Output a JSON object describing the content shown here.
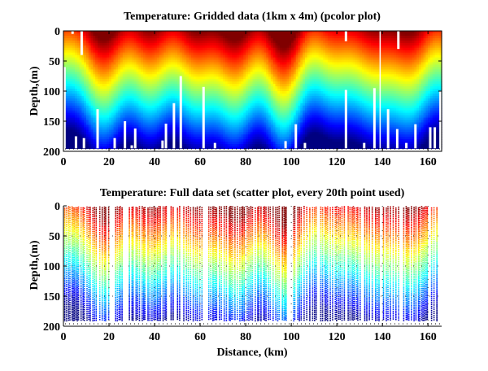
{
  "chart_data": [
    {
      "type": "heatmap",
      "title": "Temperature: Gridded data (1km x 4m) (pcolor plot)",
      "xlabel": "",
      "ylabel": "Depth,(m)",
      "xlim": [
        0,
        166
      ],
      "ylim": [
        200,
        0
      ],
      "y_reversed": true,
      "xticks": [
        "0",
        "20",
        "40",
        "60",
        "80",
        "100",
        "120",
        "140",
        "160"
      ],
      "yticks": [
        "0",
        "50",
        "100",
        "150",
        "200"
      ],
      "grid": false,
      "colormap": "jet",
      "depth_layers_m": [
        {
          "depth": 0,
          "color": "#a50000"
        },
        {
          "depth": 30,
          "color": "#e01000"
        },
        {
          "depth": 55,
          "color": "#ff6000"
        },
        {
          "depth": 75,
          "color": "#ffe000"
        },
        {
          "depth": 95,
          "color": "#a0f060"
        },
        {
          "depth": 115,
          "color": "#30e0e0"
        },
        {
          "depth": 140,
          "color": "#0080f0"
        },
        {
          "depth": 165,
          "color": "#0020d0"
        },
        {
          "depth": 195,
          "color": "#0000a0"
        }
      ],
      "gaps": [
        {
          "x": 4,
          "top": 0,
          "bottom": 5
        },
        {
          "x": 8,
          "top": 0,
          "bottom": 40
        },
        {
          "x": 5.5,
          "top": 175,
          "bottom": 195
        },
        {
          "x": 9,
          "top": 178,
          "bottom": 195
        },
        {
          "x": 15,
          "top": 130,
          "bottom": 195
        },
        {
          "x": 22.5,
          "top": 178,
          "bottom": 195
        },
        {
          "x": 27,
          "top": 150,
          "bottom": 195
        },
        {
          "x": 30,
          "top": 190,
          "bottom": 195
        },
        {
          "x": 31.5,
          "top": 162,
          "bottom": 195
        },
        {
          "x": 43.5,
          "top": 182,
          "bottom": 195
        },
        {
          "x": 45,
          "top": 154,
          "bottom": 195
        },
        {
          "x": 48.5,
          "top": 120,
          "bottom": 195
        },
        {
          "x": 51.5,
          "top": 75,
          "bottom": 195
        },
        {
          "x": 61.5,
          "top": 93,
          "bottom": 195
        },
        {
          "x": 66.5,
          "top": 186,
          "bottom": 195
        },
        {
          "x": 97.5,
          "top": 183,
          "bottom": 195
        },
        {
          "x": 102,
          "top": 155,
          "bottom": 195
        },
        {
          "x": 106,
          "top": 186,
          "bottom": 195
        },
        {
          "x": 124,
          "top": 0,
          "bottom": 17
        },
        {
          "x": 124,
          "top": 98,
          "bottom": 195
        },
        {
          "x": 132,
          "top": 186,
          "bottom": 195
        },
        {
          "x": 136.5,
          "top": 95,
          "bottom": 195
        },
        {
          "x": 139,
          "top": 0,
          "bottom": 195
        },
        {
          "x": 147,
          "top": 0,
          "bottom": 30
        },
        {
          "x": 142.5,
          "top": 130,
          "bottom": 195
        },
        {
          "x": 146.5,
          "top": 163,
          "bottom": 195
        },
        {
          "x": 150.5,
          "top": 186,
          "bottom": 195
        },
        {
          "x": 154.5,
          "top": 155,
          "bottom": 195
        },
        {
          "x": 161,
          "top": 160,
          "bottom": 195
        },
        {
          "x": 163,
          "top": 160,
          "bottom": 195
        },
        {
          "x": 165.5,
          "top": 100,
          "bottom": 200
        }
      ]
    },
    {
      "type": "scatter",
      "title": "Temperature: Full data set (scatter plot, every 20th point used)",
      "xlabel": "Distance, (km)",
      "ylabel": "Depth,(m)",
      "xlim": [
        0,
        166
      ],
      "ylim": [
        200,
        0
      ],
      "y_reversed": true,
      "xticks": [
        "0",
        "20",
        "40",
        "60",
        "80",
        "100",
        "120",
        "140",
        "160"
      ],
      "yticks": [
        "0",
        "50",
        "100",
        "150",
        "200"
      ],
      "grid": "dotted",
      "colormap": "jet",
      "data_depth_max_m": 190,
      "data_x_max_km": 164
    }
  ]
}
